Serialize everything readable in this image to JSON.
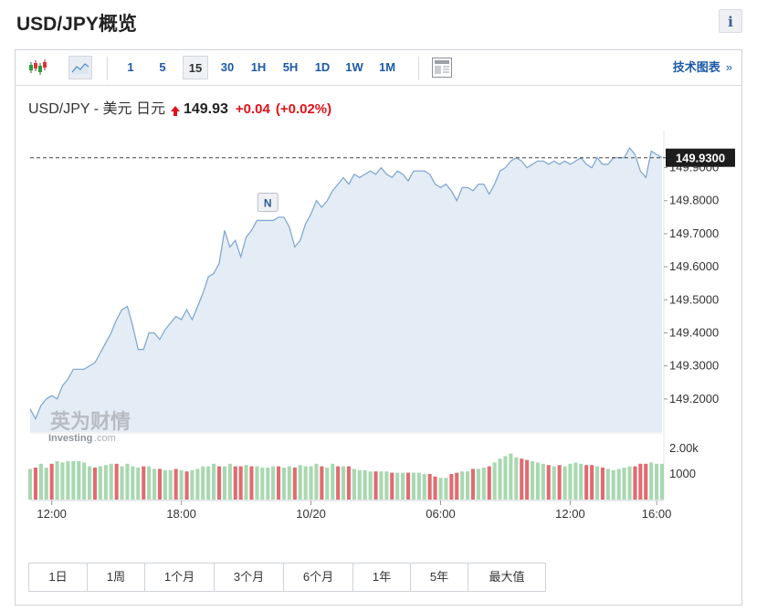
{
  "page": {
    "title": "USD/JPY概览",
    "info_label": "i"
  },
  "toolbar": {
    "chart_icons": [
      "candlestick-icon",
      "area-chart-icon",
      "table-view-icon"
    ],
    "timeframes": [
      "1",
      "5",
      "15",
      "30",
      "1H",
      "5H",
      "1D",
      "1W",
      "1M"
    ],
    "selected_timeframe": "15",
    "tech_chart_label": "技术图表",
    "tech_chart_arrow": "»"
  },
  "quote": {
    "name": "USD/JPY - 美元 日元",
    "price": "149.93",
    "change": "+0.04",
    "change_pct": "(+0.02%)",
    "direction": "up",
    "up_color": "#e0131a"
  },
  "watermark": {
    "brand": "英为财情",
    "site_a": "Investing",
    "site_b": ".com"
  },
  "event_marker": {
    "label": "N",
    "x_index": 44
  },
  "chart_data": {
    "type": "area",
    "title": "",
    "xlabel": "",
    "ylabel": "",
    "x_tick_labels": [
      "12:00",
      "18:00",
      "10/20",
      "06:00",
      "12:00",
      "16:00"
    ],
    "x_tick_index": [
      4,
      28,
      52,
      76,
      100,
      116
    ],
    "ylim": [
      149.1,
      149.99
    ],
    "y_ticks": [
      "149.9000",
      "149.8000",
      "149.7000",
      "149.6000",
      "149.5000",
      "149.4000",
      "149.3000",
      "149.2000"
    ],
    "current_price_label": "149.9300",
    "current_price": 149.93,
    "series": [
      {
        "values": [
          149.17,
          149.14,
          149.18,
          149.2,
          149.21,
          149.2,
          149.24,
          149.26,
          149.29,
          149.29,
          149.29,
          149.3,
          149.31,
          149.34,
          149.37,
          149.4,
          149.44,
          149.47,
          149.48,
          149.42,
          149.35,
          149.35,
          149.4,
          149.4,
          149.38,
          149.41,
          149.43,
          149.45,
          149.44,
          149.47,
          149.44,
          149.48,
          149.52,
          149.57,
          149.58,
          149.61,
          149.71,
          149.66,
          149.68,
          149.63,
          149.69,
          149.71,
          149.74,
          149.74,
          149.74,
          149.74,
          149.75,
          149.75,
          149.72,
          149.66,
          149.68,
          149.73,
          149.76,
          149.8,
          149.78,
          149.8,
          149.83,
          149.85,
          149.87,
          149.85,
          149.88,
          149.87,
          149.88,
          149.89,
          149.88,
          149.9,
          149.88,
          149.87,
          149.89,
          149.88,
          149.86,
          149.89,
          149.89,
          149.89,
          149.88,
          149.85,
          149.84,
          149.85,
          149.83,
          149.8,
          149.84,
          149.84,
          149.83,
          149.85,
          149.85,
          149.82,
          149.85,
          149.89,
          149.9,
          149.92,
          149.93,
          149.92,
          149.9,
          149.91,
          149.92,
          149.92,
          149.91,
          149.92,
          149.91,
          149.92,
          149.91,
          149.92,
          149.93,
          149.91,
          149.9,
          149.93,
          149.91,
          149.91,
          149.93,
          149.93,
          149.93,
          149.96,
          149.94,
          149.89,
          149.87,
          149.95,
          149.94,
          149.93
        ]
      }
    ],
    "volume": {
      "y_ticks": [
        "2.00k",
        "1000"
      ],
      "ylim": [
        0,
        2500
      ],
      "up_color": "#a8d8b0",
      "down_color": "#e06b72",
      "values": [
        1200,
        1250,
        1400,
        1250,
        1400,
        1500,
        1450,
        1500,
        1500,
        1500,
        1450,
        1300,
        1250,
        1300,
        1350,
        1400,
        1400,
        1300,
        1400,
        1300,
        1250,
        1300,
        1300,
        1200,
        1200,
        1150,
        1150,
        1200,
        1150,
        1100,
        1150,
        1200,
        1300,
        1300,
        1400,
        1300,
        1300,
        1400,
        1300,
        1300,
        1350,
        1300,
        1300,
        1250,
        1250,
        1300,
        1300,
        1250,
        1300,
        1250,
        1350,
        1300,
        1300,
        1400,
        1300,
        1250,
        1400,
        1300,
        1300,
        1300,
        1200,
        1150,
        1150,
        1100,
        1100,
        1100,
        1100,
        1050,
        1050,
        1050,
        1050,
        1050,
        1050,
        1000,
        1000,
        900,
        850,
        850,
        1000,
        1050,
        1100,
        1100,
        1200,
        1200,
        1250,
        1300,
        1450,
        1600,
        1700,
        1800,
        1650,
        1600,
        1550,
        1500,
        1450,
        1400,
        1350,
        1300,
        1350,
        1300,
        1400,
        1450,
        1400,
        1350,
        1350,
        1300,
        1250,
        1200,
        1150,
        1200,
        1250,
        1300,
        1300,
        1400,
        1400,
        1450,
        1400,
        1400
      ],
      "up": [
        true,
        false,
        true,
        true,
        false,
        true,
        true,
        true,
        true,
        true,
        true,
        true,
        false,
        true,
        true,
        true,
        false,
        true,
        true,
        true,
        true,
        false,
        true,
        true,
        false,
        true,
        true,
        false,
        true,
        false,
        true,
        true,
        true,
        true,
        true,
        false,
        true,
        true,
        false,
        false,
        true,
        false,
        true,
        true,
        true,
        true,
        false,
        true,
        true,
        false,
        true,
        true,
        true,
        true,
        false,
        true,
        true,
        false,
        true,
        false,
        true,
        true,
        true,
        true,
        false,
        true,
        true,
        false,
        true,
        true,
        false,
        true,
        true,
        true,
        false,
        false,
        true,
        true,
        false,
        false,
        true,
        true,
        false,
        true,
        true,
        false,
        true,
        true,
        true,
        true,
        true,
        false,
        false,
        true,
        true,
        true,
        false,
        true,
        false,
        true,
        true,
        true,
        true,
        false,
        false,
        true,
        false,
        true,
        true,
        true,
        true,
        true,
        false,
        false,
        false,
        true,
        true,
        true
      ]
    }
  },
  "range_buttons": [
    "1日",
    "1周",
    "1个月",
    "3个月",
    "6个月",
    "1年",
    "5年",
    "最大值"
  ]
}
